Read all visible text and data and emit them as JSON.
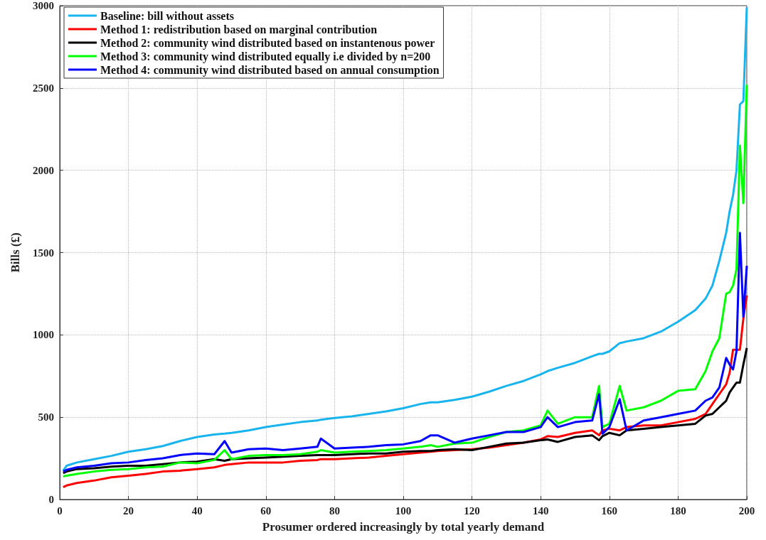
{
  "chart_data": {
    "type": "line",
    "xlabel": "Prosumer ordered increasingly by total yearly demand",
    "ylabel": "Bills (£)",
    "x": [
      1,
      2,
      5,
      10,
      15,
      20,
      25,
      30,
      35,
      40,
      45,
      48,
      50,
      55,
      60,
      65,
      70,
      75,
      76,
      80,
      85,
      90,
      95,
      100,
      105,
      108,
      110,
      115,
      120,
      125,
      130,
      135,
      140,
      142,
      145,
      150,
      155,
      157,
      158,
      160,
      163,
      165,
      170,
      175,
      180,
      185,
      188,
      190,
      192,
      194,
      195,
      196,
      197,
      198,
      199,
      200
    ],
    "series": [
      {
        "name": "Baseline: bill without assets",
        "color": "#17b4ee",
        "values": [
          175,
          205,
          225,
          245,
          265,
          290,
          305,
          325,
          355,
          380,
          395,
          400,
          405,
          420,
          440,
          455,
          470,
          480,
          485,
          495,
          505,
          520,
          535,
          555,
          580,
          590,
          590,
          605,
          625,
          655,
          690,
          720,
          760,
          780,
          800,
          830,
          870,
          885,
          885,
          900,
          950,
          960,
          980,
          1020,
          1080,
          1150,
          1220,
          1300,
          1450,
          1620,
          1750,
          1850,
          2000,
          2400,
          2420,
          2990
        ]
      },
      {
        "name": "Method 1: redistribution based on marginal contribution",
        "color": "#ff0000",
        "values": [
          75,
          85,
          100,
          115,
          135,
          145,
          155,
          170,
          175,
          185,
          195,
          210,
          215,
          225,
          225,
          225,
          235,
          240,
          245,
          245,
          250,
          255,
          265,
          275,
          285,
          290,
          295,
          300,
          305,
          315,
          330,
          345,
          365,
          385,
          380,
          405,
          420,
          390,
          420,
          430,
          420,
          440,
          450,
          450,
          470,
          490,
          520,
          580,
          640,
          700,
          770,
          910,
          910,
          910,
          1100,
          1240
        ]
      },
      {
        "name": "Method 2: community wind distributed based on instantenous power",
        "color": "#000000",
        "values": [
          160,
          170,
          185,
          190,
          200,
          205,
          205,
          215,
          225,
          230,
          245,
          235,
          245,
          250,
          255,
          260,
          265,
          270,
          270,
          270,
          275,
          280,
          280,
          290,
          295,
          295,
          300,
          305,
          300,
          320,
          340,
          345,
          360,
          365,
          350,
          380,
          390,
          360,
          385,
          405,
          390,
          420,
          430,
          440,
          450,
          460,
          510,
          520,
          560,
          600,
          650,
          680,
          710,
          710,
          820,
          920
        ]
      },
      {
        "name": "Method 3: community wind distributed equally i.e divided by n=200",
        "color": "#00ff00",
        "values": [
          140,
          145,
          155,
          170,
          180,
          185,
          195,
          200,
          225,
          220,
          240,
          300,
          245,
          265,
          270,
          270,
          275,
          290,
          300,
          285,
          290,
          295,
          300,
          310,
          320,
          330,
          320,
          340,
          345,
          380,
          410,
          420,
          450,
          540,
          460,
          500,
          500,
          690,
          440,
          460,
          690,
          540,
          560,
          600,
          660,
          670,
          780,
          900,
          980,
          1250,
          1260,
          1300,
          1400,
          2150,
          1800,
          2520
        ]
      },
      {
        "name": "Method 4: community wind distributed based on annual consumption",
        "color": "#0000ff",
        "values": [
          170,
          180,
          195,
          205,
          220,
          225,
          240,
          250,
          270,
          280,
          275,
          355,
          285,
          305,
          310,
          300,
          310,
          320,
          370,
          310,
          315,
          320,
          330,
          335,
          355,
          390,
          390,
          345,
          370,
          390,
          410,
          410,
          440,
          500,
          440,
          470,
          480,
          640,
          400,
          440,
          610,
          420,
          480,
          500,
          520,
          540,
          600,
          620,
          680,
          860,
          820,
          790,
          900,
          1620,
          1110,
          1420
        ]
      }
    ],
    "xlim": [
      0,
      200
    ],
    "xticks": [
      0,
      20,
      40,
      60,
      80,
      100,
      120,
      140,
      160,
      180,
      200
    ],
    "ylim": [
      0,
      3000
    ],
    "yticks": [
      0,
      500,
      1000,
      1500,
      2000,
      2500,
      3000
    ],
    "grid": true,
    "legend": "top left"
  }
}
